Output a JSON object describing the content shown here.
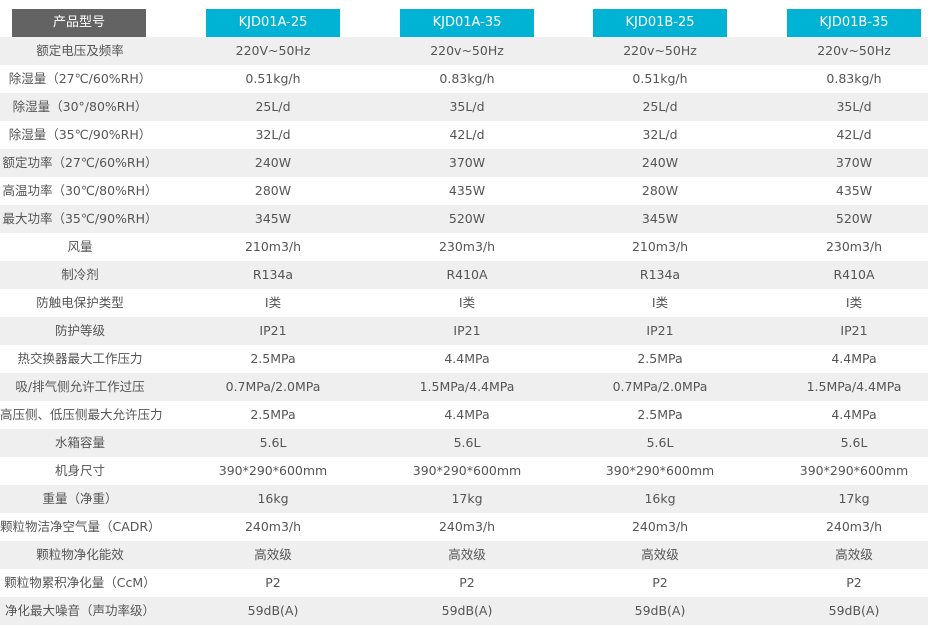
{
  "header": {
    "label": "产品型号",
    "models": [
      "KJD01A-25",
      "KJD01A-35",
      "KJD01B-25",
      "KJD01B-35"
    ]
  },
  "colors": {
    "header_label_bg": "#636363",
    "header_model_bg": "#00b2d3",
    "row_alt_bg": "#efefef"
  },
  "rows": [
    {
      "label": "额定电压及频率",
      "values": [
        "220V~50Hz",
        "220v~50Hz",
        "220v~50Hz",
        "220v~50Hz"
      ]
    },
    {
      "label": "除湿量（27℃/60%RH）",
      "values": [
        "0.51kg/h",
        "0.83kg/h",
        "0.51kg/h",
        "0.83kg/h"
      ]
    },
    {
      "label": "除湿量（30°/80%RH）",
      "values": [
        "25L/d",
        "35L/d",
        "25L/d",
        "35L/d"
      ]
    },
    {
      "label": "除湿量（35℃/90%RH）",
      "values": [
        "32L/d",
        "42L/d",
        "32L/d",
        "42L/d"
      ]
    },
    {
      "label": "额定功率（27℃/60%RH）",
      "values": [
        "240W",
        "370W",
        "240W",
        "370W"
      ]
    },
    {
      "label": "高温功率（30℃/80%RH）",
      "values": [
        "280W",
        "435W",
        "280W",
        "435W"
      ]
    },
    {
      "label": "最大功率（35℃/90%RH）",
      "values": [
        "345W",
        "520W",
        "345W",
        "520W"
      ]
    },
    {
      "label": "风量",
      "values": [
        "210m3/h",
        "230m3/h",
        "210m3/h",
        "230m3/h"
      ]
    },
    {
      "label": "制冷剂",
      "values": [
        "R134a",
        "R410A",
        "R134a",
        "R410A"
      ]
    },
    {
      "label": "防触电保护类型",
      "values": [
        "I类",
        "I类",
        "I类",
        "I类"
      ]
    },
    {
      "label": "防护等级",
      "values": [
        "IP21",
        "IP21",
        "IP21",
        "IP21"
      ]
    },
    {
      "label": "热交换器最大工作压力",
      "values": [
        "2.5MPa",
        "4.4MPa",
        "2.5MPa",
        "4.4MPa"
      ]
    },
    {
      "label": "吸/排气侧允许工作过压",
      "values": [
        "0.7MPa/2.0MPa",
        "1.5MPa/4.4MPa",
        "0.7MPa/2.0MPa",
        "1.5MPa/4.4MPa"
      ]
    },
    {
      "label": "高压侧、低压侧最大允许压力",
      "values": [
        "2.5MPa",
        "4.4MPa",
        "2.5MPa",
        "4.4MPa"
      ]
    },
    {
      "label": "水箱容量",
      "values": [
        "5.6L",
        "5.6L",
        "5.6L",
        "5.6L"
      ]
    },
    {
      "label": "机身尺寸",
      "values": [
        "390*290*600mm",
        "390*290*600mm",
        "390*290*600mm",
        "390*290*600mm"
      ]
    },
    {
      "label": "重量（净重）",
      "values": [
        "16kg",
        "17kg",
        "16kg",
        "17kg"
      ]
    },
    {
      "label": "颗粒物洁净空气量（CADR）",
      "values": [
        "240m3/h",
        "240m3/h",
        "240m3/h",
        "240m3/h"
      ]
    },
    {
      "label": "颗粒物净化能效",
      "values": [
        "高效级",
        "高效级",
        "高效级",
        "高效级"
      ]
    },
    {
      "label": "颗粒物累积净化量（CcM）",
      "values": [
        "P2",
        "P2",
        "P2",
        "P2"
      ]
    },
    {
      "label": "净化最大噪音（声功率级）",
      "values": [
        "59dB(A)",
        "59dB(A)",
        "59dB(A)",
        "59dB(A)"
      ]
    }
  ]
}
